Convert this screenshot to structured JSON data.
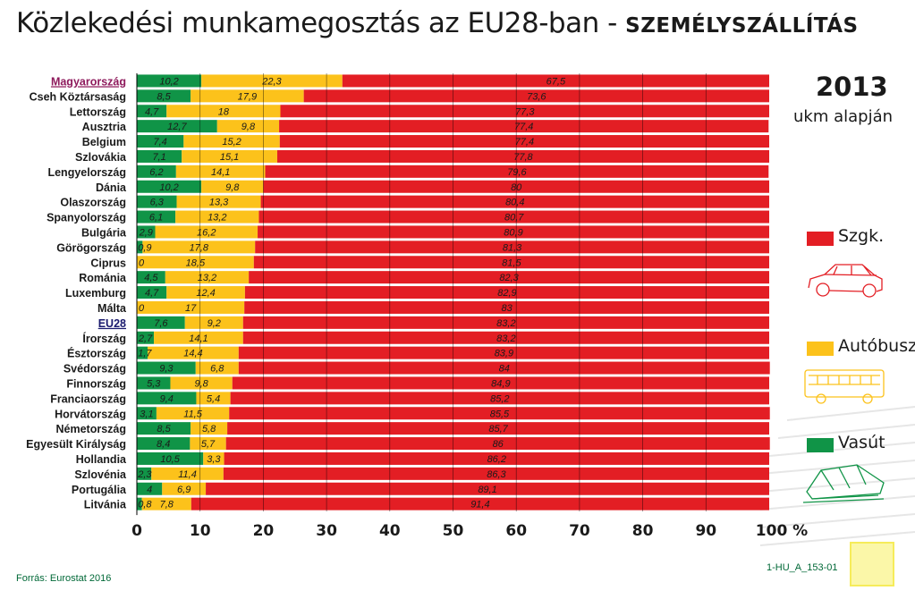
{
  "title": {
    "main": "Közlekedési munkamegosztás az EU28-ban - ",
    "bold": "SZEMÉLYSZÁLLÍTÁS"
  },
  "annotation": {
    "year": "2013",
    "basis": "ukm alapján"
  },
  "legend": [
    {
      "label": "Szgk.",
      "color": "#e31e24",
      "icon": "car-icon"
    },
    {
      "label": "Autóbusz",
      "color": "#fcc21b",
      "icon": "bus-icon"
    },
    {
      "label": "Vasút",
      "color": "#109447",
      "icon": "train-icon"
    }
  ],
  "source": "Forrás: Eurostat 2016",
  "figure_code": "1-HU_A_153-01",
  "chart_data": {
    "type": "bar",
    "orientation": "horizontal",
    "stacked": true,
    "xlim": [
      0,
      100
    ],
    "x_ticks": [
      "0",
      "10",
      "20",
      "30",
      "40",
      "50",
      "60",
      "70",
      "80",
      "90",
      "100 %"
    ],
    "grid": true,
    "highlighted": [
      "Magyarország",
      "EU28"
    ],
    "categories": [
      "Magyarország",
      "Cseh Köztársaság",
      "Lettország",
      "Ausztria",
      "Belgium",
      "Szlovákia",
      "Lengyelország",
      "Dánia",
      "Olaszország",
      "Spanyolország",
      "Bulgária",
      "Görögország",
      "Ciprus",
      "Románia",
      "Luxemburg",
      "Málta",
      "EU28",
      "Írország",
      "Észtország",
      "Svédország",
      "Finnország",
      "Franciaország",
      "Horvátország",
      "Németország",
      "Egyesült Királyság",
      "Hollandia",
      "Szlovénia",
      "Portugália",
      "Litvánia"
    ],
    "series": [
      {
        "name": "Vasút",
        "color": "#109447",
        "values": [
          10.2,
          8.5,
          4.7,
          12.7,
          7.4,
          7.1,
          6.2,
          10.2,
          6.3,
          6.1,
          2.9,
          0.9,
          0,
          4.5,
          4.7,
          0,
          7.6,
          2.7,
          1.7,
          9.3,
          5.3,
          9.4,
          3.1,
          8.5,
          8.4,
          10.5,
          2.3,
          4,
          0.8
        ],
        "labels": [
          "10,2",
          "8,5",
          "4,7",
          "12,7",
          "7,4",
          "7,1",
          "6,2",
          "10,2",
          "6,3",
          "6,1",
          "2,9",
          "0,9",
          "0",
          "4,5",
          "4,7",
          "0",
          "7,6",
          "2,7",
          "1,7",
          "9,3",
          "5,3",
          "9,4",
          "3,1",
          "8,5",
          "8,4",
          "10,5",
          "2,3",
          "4",
          "0,8"
        ]
      },
      {
        "name": "Autóbusz",
        "color": "#fcc21b",
        "values": [
          22.3,
          17.9,
          18,
          9.8,
          15.2,
          15.1,
          14.1,
          9.8,
          13.3,
          13.2,
          16.2,
          17.8,
          18.5,
          13.2,
          12.4,
          17,
          9.2,
          14.1,
          14.4,
          6.8,
          9.8,
          5.4,
          11.5,
          5.8,
          5.7,
          3.3,
          11.4,
          6.9,
          7.8
        ],
        "labels": [
          "22,3",
          "17,9",
          "18",
          "9,8",
          "15,2",
          "15,1",
          "14,1",
          "9,8",
          "13,3",
          "13,2",
          "16,2",
          "17,8",
          "18,5",
          "13,2",
          "12,4",
          "17",
          "9,2",
          "14,1",
          "14,4",
          "6,8",
          "9,8",
          "5,4",
          "11,5",
          "5,8",
          "5,7",
          "3,3",
          "11,4",
          "6,9",
          "7,8"
        ]
      },
      {
        "name": "Szgk.",
        "color": "#e31e24",
        "values": [
          67.5,
          73.6,
          77.3,
          77.4,
          77.4,
          77.8,
          79.6,
          80,
          80.4,
          80.7,
          80.9,
          81.3,
          81.5,
          82.3,
          82.9,
          83,
          83.2,
          83.2,
          83.9,
          84,
          84.9,
          85.2,
          85.5,
          85.7,
          86,
          86.2,
          86.3,
          89.1,
          91.4
        ],
        "labels": [
          "67,5",
          "73,6",
          "77,3",
          "77,4",
          "77,4",
          "77,8",
          "79,6",
          "80",
          "80,4",
          "80,7",
          "80,9",
          "81,3",
          "81,5",
          "82,3",
          "82,9",
          "83",
          "83,2",
          "83,2",
          "83,9",
          "84",
          "84,9",
          "85,2",
          "85,5",
          "85,7",
          "86",
          "86,2",
          "86,3",
          "89,1",
          "91,4"
        ]
      }
    ]
  }
}
